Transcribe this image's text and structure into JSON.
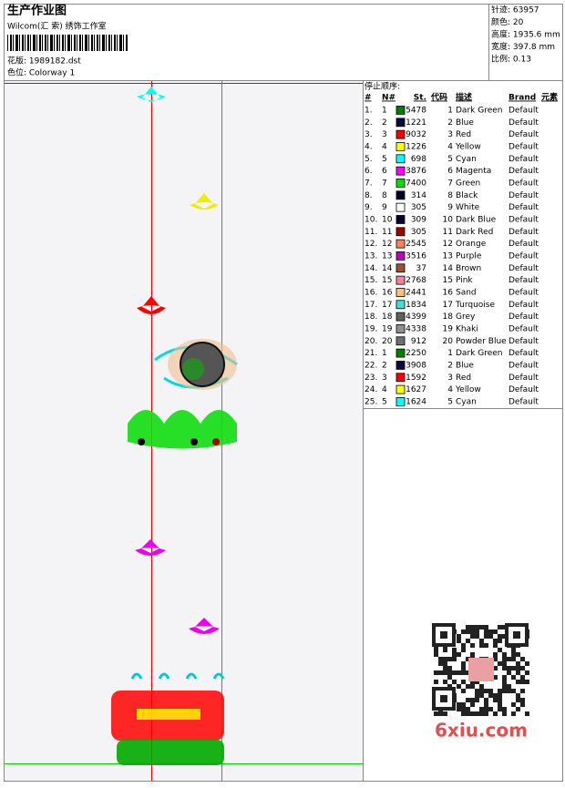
{
  "header": {
    "title": "生产作业图",
    "studio": "Wilcom(汇 索) 绣饰工作室",
    "design": "花版: 1989182.dst",
    "colorway": "色位: Colorway 1"
  },
  "stats": [
    "针迹: 63957",
    "颜色: 20",
    "高度: 1935.6 mm",
    "宽度: 397.8 mm",
    "比例: 0.13"
  ],
  "table": {
    "title": "停止顺序:",
    "columns": [
      "#",
      "N#",
      "St.",
      "代码",
      "描述",
      "Brand",
      "元素"
    ],
    "rows": [
      [
        "1.",
        "1",
        "5478",
        "1",
        "Dark Green",
        "Default",
        "#008000"
      ],
      [
        "2.",
        "2",
        "1221",
        "2",
        "Blue",
        "Default",
        "#0a0a3c"
      ],
      [
        "3.",
        "3",
        "9032",
        "3",
        "Red",
        "Default",
        "#ff0000"
      ],
      [
        "4.",
        "4",
        "1226",
        "4",
        "Yellow",
        "Default",
        "#ffff00"
      ],
      [
        "5.",
        "5",
        "698",
        "5",
        "Cyan",
        "Default",
        "#00ffff"
      ],
      [
        "6.",
        "6",
        "3876",
        "6",
        "Magenta",
        "Default",
        "#ff00ff"
      ],
      [
        "7.",
        "7",
        "7400",
        "7",
        "Green",
        "Default",
        "#00e000"
      ],
      [
        "8.",
        "8",
        "314",
        "8",
        "Black",
        "Default",
        "#000020"
      ],
      [
        "9.",
        "9",
        "305",
        "9",
        "White",
        "Default",
        "#ffffff"
      ],
      [
        "10.",
        "10",
        "309",
        "10",
        "Dark Blue",
        "Default",
        "#000030"
      ],
      [
        "11.",
        "11",
        "305",
        "11",
        "Dark Red",
        "Default",
        "#a00000"
      ],
      [
        "12.",
        "12",
        "2545",
        "12",
        "Orange",
        "Default",
        "#ff8060"
      ],
      [
        "13.",
        "13",
        "3516",
        "13",
        "Purple",
        "Default",
        "#c000c0"
      ],
      [
        "14.",
        "14",
        "37",
        "14",
        "Brown",
        "Default",
        "#a05030"
      ],
      [
        "15.",
        "15",
        "2768",
        "15",
        "Pink",
        "Default",
        "#ff80a0"
      ],
      [
        "16.",
        "16",
        "2441",
        "16",
        "Sand",
        "Default",
        "#ffc080"
      ],
      [
        "17.",
        "17",
        "1834",
        "17",
        "Turquoise",
        "Default",
        "#40e0d0"
      ],
      [
        "18.",
        "18",
        "4399",
        "18",
        "Grey",
        "Default",
        "#606060"
      ],
      [
        "19.",
        "19",
        "4338",
        "19",
        "Khaki",
        "Default",
        "#909090"
      ],
      [
        "20.",
        "20",
        "912",
        "20",
        "Powder Blue",
        "Default",
        "#707070"
      ],
      [
        "21.",
        "1",
        "2250",
        "1",
        "Dark Green",
        "Default",
        "#008000"
      ],
      [
        "22.",
        "2",
        "3908",
        "2",
        "Blue",
        "Default",
        "#0a0a3c"
      ],
      [
        "23.",
        "3",
        "1592",
        "3",
        "Red",
        "Default",
        "#ff0000"
      ],
      [
        "24.",
        "4",
        "1627",
        "4",
        "Yellow",
        "Default",
        "#ffff00"
      ],
      [
        "25.",
        "5",
        "1624",
        "5",
        "Cyan",
        "Default",
        "#00ffff"
      ]
    ]
  },
  "watermark": "6xiu.com"
}
